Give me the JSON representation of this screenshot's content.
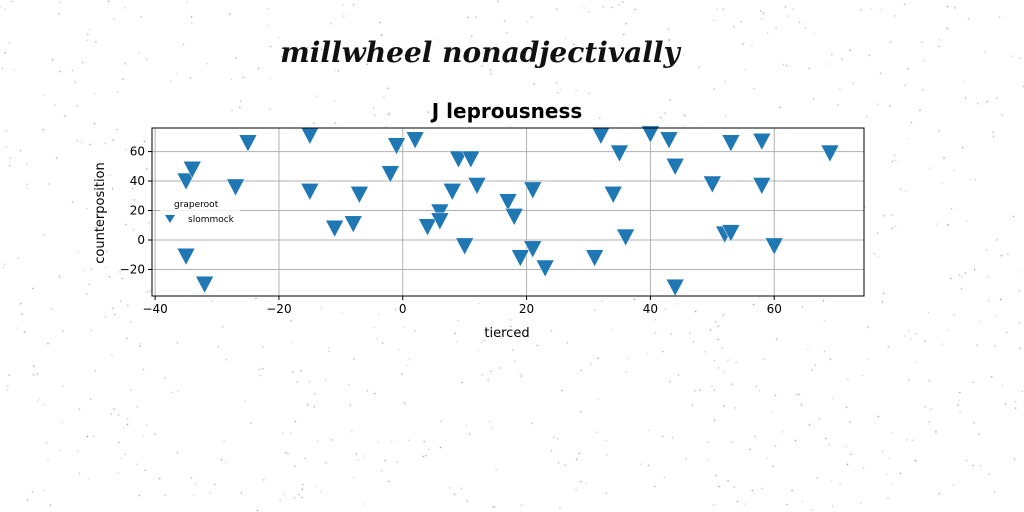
{
  "figure": {
    "suptitle": "millwheel nonadjectivally"
  },
  "colors": {
    "marker": "#1f77b4",
    "grid": "#b0b0b0",
    "axis": "#000000"
  },
  "chart_data": {
    "type": "scatter",
    "title": "J leprousness",
    "xlabel": "tierced",
    "ylabel": "counterposition",
    "xlim": [
      -40.5,
      74.5
    ],
    "ylim": [
      -38,
      76
    ],
    "xticks": [
      -40,
      -20,
      0,
      20,
      40,
      60
    ],
    "yticks": [
      -20,
      0,
      20,
      40,
      60
    ],
    "grid": true,
    "marker": "triangle-down",
    "legend": {
      "placement": "center-left",
      "title": "graperoot",
      "entries": [
        "slommock"
      ]
    },
    "series": [
      {
        "name": "slommock",
        "points": [
          [
            -35,
            40
          ],
          [
            -34,
            48
          ],
          [
            -35,
            -11
          ],
          [
            -32,
            -30
          ],
          [
            -27,
            36
          ],
          [
            -25,
            66
          ],
          [
            -15,
            71
          ],
          [
            -15,
            33
          ],
          [
            -11,
            8
          ],
          [
            -8,
            11
          ],
          [
            -7,
            31
          ],
          [
            -2,
            45
          ],
          [
            -1,
            64
          ],
          [
            2,
            68
          ],
          [
            4,
            9
          ],
          [
            6,
            19
          ],
          [
            6,
            13
          ],
          [
            8,
            33
          ],
          [
            9,
            55
          ],
          [
            10,
            -4
          ],
          [
            11,
            55
          ],
          [
            12,
            37
          ],
          [
            17,
            26
          ],
          [
            18,
            16
          ],
          [
            19,
            -12
          ],
          [
            21,
            -6
          ],
          [
            21,
            34
          ],
          [
            23,
            -19
          ],
          [
            31,
            -12
          ],
          [
            32,
            71
          ],
          [
            34,
            31
          ],
          [
            35,
            59
          ],
          [
            36,
            2
          ],
          [
            40,
            72
          ],
          [
            43,
            68
          ],
          [
            44,
            50
          ],
          [
            44,
            -32
          ],
          [
            50,
            38
          ],
          [
            52,
            4
          ],
          [
            53,
            5
          ],
          [
            53,
            66
          ],
          [
            58,
            67
          ],
          [
            58,
            37
          ],
          [
            60,
            -4
          ],
          [
            69,
            59
          ]
        ]
      }
    ]
  }
}
